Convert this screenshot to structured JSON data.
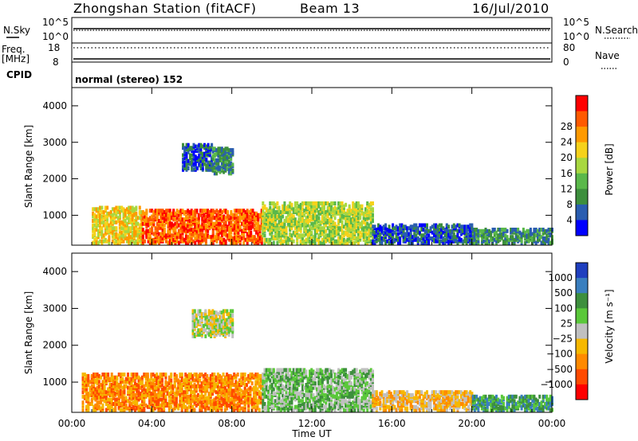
{
  "header": {
    "station": "Zhongshan Station (fitACF)",
    "beam": "Beam 13",
    "date": "16/Jul/2010"
  },
  "aux_panels": {
    "nsky_label": "N.Sky",
    "nsky_ticks": [
      "10^5",
      "10^0"
    ],
    "nsearch_label": "N.Search",
    "nsearch_ticks": [
      "10^5",
      "10^0"
    ],
    "freq_label": "Freq.",
    "freq_unit": "[MHz]",
    "freq_ticks": [
      "18",
      "8"
    ],
    "nave_label": "Nave",
    "nave_ticks": [
      "80",
      "0"
    ],
    "cpid_label": "CPID",
    "cpid_text": "normal (stereo) 152"
  },
  "colors": {
    "power_scale": [
      "#0000ff",
      "#2a5db0",
      "#3d8f3d",
      "#5ab84a",
      "#a8d840",
      "#f6d21b",
      "#ff9a00",
      "#ff5a00",
      "#ff0000"
    ],
    "velocity_scale": [
      "#1f3fbf",
      "#3a7fbf",
      "#3d8f3d",
      "#5ac83a",
      "#c0c0c0",
      "#f6b800",
      "#ff8a00",
      "#ff4a00",
      "#ff0000"
    ]
  },
  "chart_data": [
    {
      "type": "heatmap",
      "name": "power",
      "ylabel": "Slant Range [km]",
      "ylim": [
        180,
        4500
      ],
      "xlim": [
        0,
        24
      ],
      "yticks": [
        "1000",
        "2000",
        "3000",
        "4000"
      ],
      "colorbar_label": "Power [dB]",
      "colorbar_ticks": [
        "4",
        "8",
        "12",
        "16",
        "20",
        "24",
        "28"
      ],
      "bands": [
        {
          "t0": 1.0,
          "t1": 3.5,
          "r0": 300,
          "r1": 1300,
          "level": 5
        },
        {
          "t0": 3.5,
          "t1": 9.5,
          "r0": 300,
          "r1": 1200,
          "level": 7
        },
        {
          "t0": 5.5,
          "t1": 7.0,
          "r0": 2300,
          "r1": 3000,
          "level": 1
        },
        {
          "t0": 7.0,
          "t1": 8.0,
          "r0": 2200,
          "r1": 2900,
          "level": 2
        },
        {
          "t0": 9.5,
          "t1": 15.0,
          "r0": 300,
          "r1": 1400,
          "level": 4
        },
        {
          "t0": 15.0,
          "t1": 20.0,
          "r0": 300,
          "r1": 800,
          "level": 1
        },
        {
          "t0": 20.0,
          "t1": 24.0,
          "r0": 300,
          "r1": 700,
          "level": 2
        }
      ]
    },
    {
      "type": "heatmap",
      "name": "velocity",
      "ylabel": "Slant Range [km]",
      "xlabel": "Time UT",
      "ylim": [
        180,
        4500
      ],
      "xlim": [
        0,
        24
      ],
      "yticks": [
        "1000",
        "2000",
        "3000",
        "4000"
      ],
      "xticks": [
        "00:00",
        "04:00",
        "08:00",
        "12:00",
        "16:00",
        "20:00",
        "00:00"
      ],
      "colorbar_label": "Velocity [m s⁻¹]",
      "colorbar_ticks": [
        "1000",
        "500",
        "100",
        "25",
        "−25",
        "−100",
        "−500",
        "−1000"
      ],
      "bands": [
        {
          "t0": 0.5,
          "t1": 9.5,
          "r0": 300,
          "r1": 1300,
          "level": 6
        },
        {
          "t0": 6.0,
          "t1": 8.0,
          "r0": 2300,
          "r1": 3000,
          "level": 4
        },
        {
          "t0": 9.5,
          "t1": 15.0,
          "r0": 300,
          "r1": 1400,
          "level": 3
        },
        {
          "t0": 15.0,
          "t1": 20.0,
          "r0": 300,
          "r1": 800,
          "level": 5
        },
        {
          "t0": 20.0,
          "t1": 24.0,
          "r0": 300,
          "r1": 700,
          "level": 2
        }
      ]
    }
  ]
}
